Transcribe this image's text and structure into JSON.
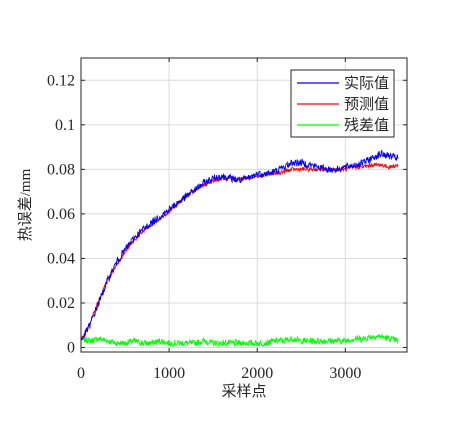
{
  "chart_data": {
    "type": "line",
    "title": "",
    "xlabel": "采样点",
    "ylabel": "热误差/mm",
    "xlim": [
      0,
      3700
    ],
    "ylim": [
      -0.002,
      0.13
    ],
    "xticks": [
      0,
      1000,
      2000,
      3000
    ],
    "xtick_labels": [
      "0",
      "1000",
      "2000",
      "3000"
    ],
    "yticks": [
      0,
      0.02,
      0.04,
      0.06,
      0.08,
      0.1,
      0.12
    ],
    "ytick_labels": [
      "0",
      "0.02",
      "0.04",
      "0.06",
      "0.08",
      "0.1",
      "0.12"
    ],
    "grid": true,
    "legend_position": "top-right",
    "x": [
      0,
      100,
      200,
      300,
      400,
      500,
      600,
      700,
      800,
      900,
      1000,
      1100,
      1200,
      1300,
      1400,
      1500,
      1600,
      1700,
      1800,
      1900,
      2000,
      2100,
      2200,
      2300,
      2400,
      2500,
      2600,
      2700,
      2800,
      2900,
      3000,
      3100,
      3200,
      3300,
      3400,
      3500,
      3600
    ],
    "series": [
      {
        "name": "实际值",
        "color": "#0000ff",
        "values": [
          0.003,
          0.01,
          0.02,
          0.03,
          0.038,
          0.044,
          0.049,
          0.053,
          0.056,
          0.059,
          0.062,
          0.065,
          0.068,
          0.071,
          0.074,
          0.076,
          0.077,
          0.076,
          0.075,
          0.076,
          0.078,
          0.078,
          0.079,
          0.081,
          0.083,
          0.083,
          0.082,
          0.081,
          0.08,
          0.08,
          0.081,
          0.082,
          0.083,
          0.085,
          0.087,
          0.086,
          0.085
        ]
      },
      {
        "name": "预测值",
        "color": "#ff0000",
        "values": [
          0.003,
          0.011,
          0.021,
          0.03,
          0.037,
          0.043,
          0.048,
          0.052,
          0.055,
          0.058,
          0.061,
          0.065,
          0.068,
          0.071,
          0.073,
          0.075,
          0.076,
          0.076,
          0.076,
          0.076,
          0.077,
          0.078,
          0.078,
          0.079,
          0.08,
          0.08,
          0.08,
          0.08,
          0.08,
          0.08,
          0.08,
          0.081,
          0.081,
          0.082,
          0.082,
          0.081,
          0.082
        ]
      },
      {
        "name": "残差值",
        "color": "#00ff00",
        "values": [
          0.004,
          0.003,
          0.004,
          0.003,
          0.002,
          0.002,
          0.003,
          0.002,
          0.002,
          0.003,
          0.002,
          0.002,
          0.002,
          0.002,
          0.003,
          0.002,
          0.002,
          0.002,
          0.002,
          0.002,
          0.002,
          0.002,
          0.003,
          0.003,
          0.004,
          0.003,
          0.003,
          0.003,
          0.003,
          0.003,
          0.003,
          0.004,
          0.004,
          0.005,
          0.005,
          0.004,
          0.003
        ]
      }
    ]
  }
}
